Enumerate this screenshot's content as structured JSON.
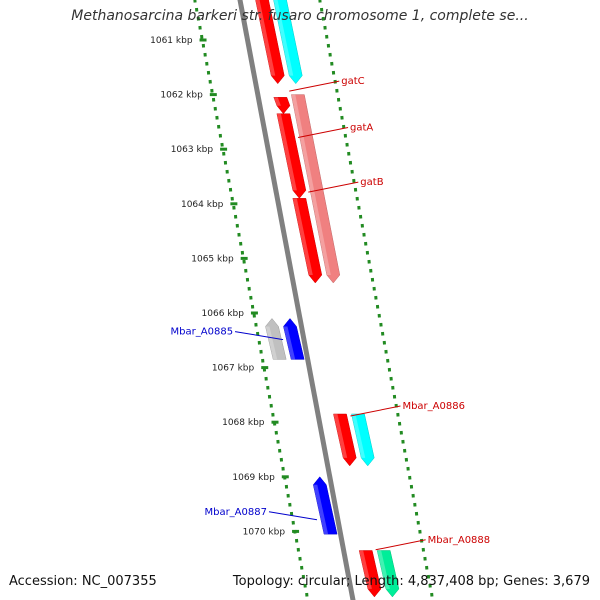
{
  "title": "Methanosarcina barkeri str. fusaro chromosome 1, complete se...",
  "footer": {
    "accession": "Accession: NC_007355",
    "topology": "Topology: circular; Length: 4,837,408 bp; Genes: 3,679"
  },
  "ticks": [
    {
      "label": "1061 kbp",
      "pos": 1061
    },
    {
      "label": "1062 kbp",
      "pos": 1062
    },
    {
      "label": "1063 kbp",
      "pos": 1063
    },
    {
      "label": "1064 kbp",
      "pos": 1064
    },
    {
      "label": "1065 kbp",
      "pos": 1065
    },
    {
      "label": "1066 kbp",
      "pos": 1066
    },
    {
      "label": "1067 kbp",
      "pos": 1067
    },
    {
      "label": "1068 kbp",
      "pos": 1068
    },
    {
      "label": "1069 kbp",
      "pos": 1069
    },
    {
      "label": "1070 kbp",
      "pos": 1070
    }
  ],
  "genes": [
    {
      "label": "",
      "start": 1060.2,
      "end": 1061.8,
      "strand": "+",
      "track": 1,
      "color": "#ff0000"
    },
    {
      "label": "",
      "start": 1060.2,
      "end": 1061.8,
      "strand": "+",
      "track": 2,
      "color": "#00ffff"
    },
    {
      "label": "gatC",
      "start": 1062.05,
      "end": 1062.35,
      "strand": "+",
      "track": 1,
      "color": "#ff0000",
      "label_pos": 1061.9
    },
    {
      "label": "gatA",
      "start": 1062.35,
      "end": 1063.9,
      "strand": "+",
      "track": 1,
      "color": "#ff0000",
      "label_pos": 1062.75
    },
    {
      "label": "gatB",
      "start": 1063.9,
      "end": 1065.45,
      "strand": "+",
      "track": 1,
      "color": "#ff0000",
      "label_pos": 1063.75
    },
    {
      "label": "",
      "start": 1062.0,
      "end": 1065.45,
      "strand": "+",
      "track": 2,
      "color": "#f08080"
    },
    {
      "label": "Mbar_A0885",
      "start": 1066.1,
      "end": 1066.85,
      "strand": "-",
      "track": -1,
      "color": "#0000ff",
      "label_pos": 1066.45
    },
    {
      "label": "",
      "start": 1066.1,
      "end": 1066.85,
      "strand": "-",
      "track": -2,
      "color": "#c0c0c0"
    },
    {
      "label": "Mbar_A0886",
      "start": 1067.85,
      "end": 1068.8,
      "strand": "+",
      "track": 1,
      "color": "#ff0000",
      "label_pos": 1067.85
    },
    {
      "label": "",
      "start": 1067.85,
      "end": 1068.8,
      "strand": "+",
      "track": 2,
      "color": "#00ffff"
    },
    {
      "label": "Mbar_A0887",
      "start": 1069.0,
      "end": 1070.05,
      "strand": "-",
      "track": -1,
      "color": "#0000ff",
      "label_pos": 1069.75
    },
    {
      "label": "Mbar_A0888",
      "start": 1070.35,
      "end": 1071.2,
      "strand": "+",
      "track": 1,
      "color": "#ff0000",
      "label_pos": 1070.3
    },
    {
      "label": "",
      "start": 1070.35,
      "end": 1071.2,
      "strand": "+",
      "track": 2,
      "color": "#00ee99"
    }
  ],
  "colors": {
    "backbone": "#808080",
    "ruler": "#228b22",
    "forward_label": "#cc0000",
    "reverse_label": "#0000cc"
  }
}
